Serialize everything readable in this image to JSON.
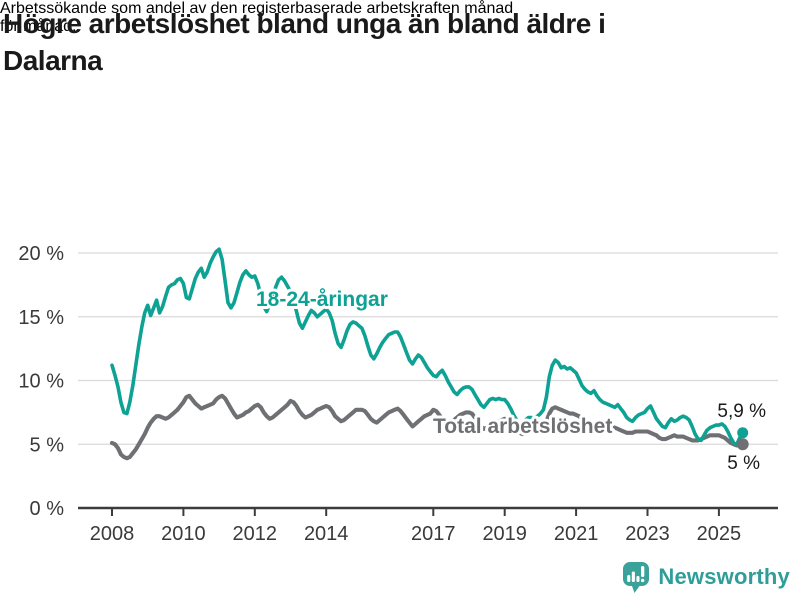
{
  "header": {
    "title": "Högre arbetslöshet bland unga än bland äldre i Dalarna",
    "title_line1": "Högre arbetslöshet bland unga än bland äldre i",
    "title_line2": "Dalarna",
    "subtitle": "Arbetssökande som andel av den registerbaserade arbetskraften månad för månad.",
    "subtitle_line1": "Arbetssökande som andel av den registerbaserade arbetskraften månad",
    "subtitle_line2": "för månad."
  },
  "chart_data": {
    "type": "line",
    "title": "Högre arbetslöshet bland unga än bland äldre i Dalarna",
    "subtitle": "Arbetssökande som andel av den registerbaserade arbetskraften månad för månad.",
    "x_unit": "month",
    "x_start": "2008-01",
    "x_end": "2025-09",
    "x_ticks": [
      2008,
      2010,
      2012,
      2014,
      2017,
      2019,
      2021,
      2023,
      2025
    ],
    "x_tick_labels": [
      "2008",
      "2010",
      "2012",
      "2014",
      "2017",
      "2019",
      "2021",
      "2023",
      "2025"
    ],
    "y_ticks": [
      0,
      5,
      10,
      15,
      20
    ],
    "y_tick_labels": [
      "0 %",
      "5 %",
      "10 %",
      "15 %",
      "20 %"
    ],
    "ylim": [
      0,
      21
    ],
    "grid": "horizontal",
    "legend_position": "inline-labels",
    "series": [
      {
        "name": "18-24-åringar",
        "inline_label": "18-24-åringar",
        "end_label": "5,9 %",
        "end_value": 5.9,
        "color": "#0da294",
        "values": [
          11.2,
          10.4,
          9.5,
          8.3,
          7.5,
          7.4,
          8.3,
          9.6,
          11.2,
          12.8,
          14.2,
          15.3,
          15.9,
          15.1,
          15.7,
          16.3,
          15.3,
          15.8,
          16.6,
          17.3,
          17.5,
          17.6,
          17.9,
          18.0,
          17.6,
          16.5,
          16.4,
          17.2,
          18.0,
          18.5,
          18.8,
          18.1,
          18.5,
          19.2,
          19.7,
          20.1,
          20.3,
          19.5,
          17.8,
          16.1,
          15.7,
          16.1,
          16.9,
          17.7,
          18.3,
          18.6,
          18.3,
          18.1,
          18.2,
          17.6,
          16.7,
          15.8,
          15.4,
          16.0,
          16.7,
          17.3,
          17.9,
          18.1,
          17.8,
          17.4,
          17.0,
          16.3,
          15.4,
          14.5,
          14.1,
          14.6,
          15.1,
          15.5,
          15.3,
          15.0,
          15.2,
          15.4,
          15.6,
          15.3,
          14.7,
          13.7,
          12.9,
          12.6,
          13.2,
          13.9,
          14.4,
          14.6,
          14.5,
          14.3,
          14.1,
          13.5,
          12.7,
          12.0,
          11.7,
          12.1,
          12.6,
          13.0,
          13.3,
          13.6,
          13.7,
          13.8,
          13.8,
          13.4,
          12.8,
          12.2,
          11.6,
          11.3,
          11.7,
          12.0,
          11.8,
          11.4,
          11.0,
          10.7,
          10.4,
          10.3,
          10.6,
          10.8,
          10.4,
          9.9,
          9.5,
          9.1,
          8.9,
          9.2,
          9.4,
          9.5,
          9.5,
          9.3,
          8.9,
          8.5,
          8.1,
          7.9,
          8.2,
          8.5,
          8.6,
          8.5,
          8.6,
          8.5,
          8.5,
          8.2,
          7.8,
          7.3,
          6.9,
          6.6,
          6.6,
          6.9,
          7.1,
          7.1,
          7.0,
          7.2,
          7.4,
          7.7,
          8.7,
          10.3,
          11.2,
          11.6,
          11.4,
          11.0,
          11.1,
          10.9,
          11.0,
          10.8,
          10.6,
          10.1,
          9.6,
          9.3,
          9.1,
          9.0,
          9.2,
          8.8,
          8.5,
          8.3,
          8.2,
          8.1,
          8.0,
          7.9,
          8.1,
          7.8,
          7.5,
          7.1,
          6.9,
          6.8,
          7.1,
          7.3,
          7.4,
          7.5,
          7.8,
          8.0,
          7.5,
          7.0,
          6.7,
          6.4,
          6.3,
          6.7,
          7.0,
          6.8,
          6.9,
          7.1,
          7.2,
          7.1,
          6.9,
          6.4,
          5.8,
          5.4,
          5.3,
          5.7,
          6.1,
          6.3,
          6.4,
          6.5,
          6.5,
          6.6,
          6.4,
          6.0,
          5.5,
          5.1,
          5.0,
          5.5,
          5.9
        ]
      },
      {
        "name": "Total arbetslöshet",
        "inline_label": "Total arbetslöshet",
        "end_label": "5 %",
        "end_value": 5.0,
        "color": "#6e7073",
        "values": [
          5.1,
          5.0,
          4.7,
          4.2,
          4.0,
          3.9,
          4.0,
          4.3,
          4.6,
          5.0,
          5.4,
          5.8,
          6.3,
          6.7,
          7.0,
          7.2,
          7.2,
          7.1,
          7.0,
          7.1,
          7.3,
          7.5,
          7.7,
          8.0,
          8.3,
          8.7,
          8.8,
          8.5,
          8.2,
          8.0,
          7.8,
          7.9,
          8.0,
          8.1,
          8.2,
          8.5,
          8.7,
          8.8,
          8.6,
          8.2,
          7.8,
          7.4,
          7.1,
          7.2,
          7.3,
          7.5,
          7.6,
          7.8,
          8.0,
          8.1,
          7.9,
          7.5,
          7.2,
          7.0,
          7.1,
          7.3,
          7.5,
          7.7,
          7.9,
          8.1,
          8.4,
          8.3,
          8.0,
          7.6,
          7.3,
          7.1,
          7.2,
          7.3,
          7.5,
          7.7,
          7.8,
          7.9,
          8.0,
          7.9,
          7.6,
          7.2,
          7.0,
          6.8,
          6.9,
          7.1,
          7.3,
          7.5,
          7.7,
          7.7,
          7.7,
          7.6,
          7.3,
          7.0,
          6.8,
          6.7,
          6.9,
          7.1,
          7.3,
          7.5,
          7.6,
          7.7,
          7.8,
          7.6,
          7.3,
          7.0,
          6.7,
          6.4,
          6.6,
          6.8,
          7.0,
          7.2,
          7.3,
          7.4,
          7.7,
          7.6,
          7.3,
          7.0,
          6.7,
          6.5,
          6.7,
          6.9,
          7.1,
          7.3,
          7.4,
          7.5,
          7.5,
          7.4,
          7.1,
          6.8,
          6.4,
          6.2,
          6.3,
          6.5,
          6.6,
          6.7,
          6.8,
          6.9,
          7.0,
          6.9,
          6.6,
          6.3,
          6.1,
          5.9,
          5.8,
          5.9,
          6.0,
          6.1,
          6.2,
          6.3,
          6.4,
          6.4,
          6.8,
          7.4,
          7.8,
          7.9,
          7.8,
          7.7,
          7.6,
          7.5,
          7.4,
          7.4,
          7.3,
          7.2,
          7.0,
          6.9,
          6.8,
          6.6,
          6.5,
          6.4,
          6.4,
          6.3,
          6.3,
          6.4,
          6.4,
          6.3,
          6.2,
          6.1,
          6.0,
          5.9,
          5.9,
          5.9,
          6.0,
          6.0,
          6.0,
          6.0,
          6.0,
          5.9,
          5.8,
          5.7,
          5.5,
          5.4,
          5.4,
          5.5,
          5.6,
          5.7,
          5.6,
          5.6,
          5.6,
          5.5,
          5.4,
          5.3,
          5.3,
          5.3,
          5.4,
          5.5,
          5.6,
          5.7,
          5.7,
          5.7,
          5.7,
          5.6,
          5.5,
          5.3,
          5.1,
          5.0,
          4.9,
          4.9,
          5.0
        ]
      }
    ]
  },
  "footer": {
    "brand": "Newsworthy",
    "brand_color": "#2f9e99",
    "logo_color": "#3aa29b",
    "logo_icon": "speech-bubble-bar-chart"
  }
}
